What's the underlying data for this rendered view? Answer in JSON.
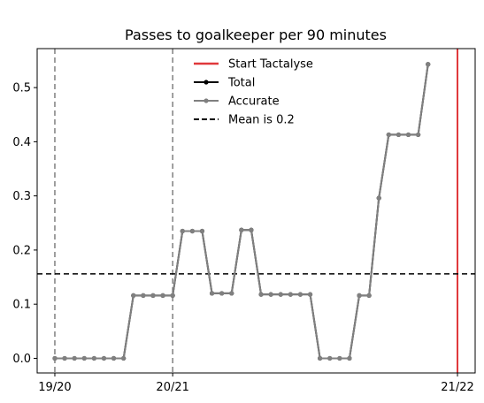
{
  "chart_data": {
    "type": "line",
    "title": "Passes to goalkeeper per 90 minutes",
    "xlabel": "",
    "ylabel": "",
    "x_tick_labels": [
      {
        "x": 0,
        "label": "19/20"
      },
      {
        "x": 12,
        "label": "20/21"
      },
      {
        "x": 41,
        "label": "21/22"
      }
    ],
    "y_ticks": [
      0.0,
      0.1,
      0.2,
      0.3,
      0.4,
      0.5
    ],
    "y_tick_labels": [
      "0.0",
      "0.1",
      "0.2",
      "0.3",
      "0.4",
      "0.5"
    ],
    "xlim": [
      -1.8,
      42.8
    ],
    "ylim": [
      -0.027,
      0.572
    ],
    "grid": false,
    "legend_position": "top-center",
    "series": [
      {
        "name": "Total",
        "color": "#000000",
        "marker": "dot",
        "x": [
          0,
          1,
          2,
          3,
          4,
          5,
          6,
          7,
          8,
          9,
          10,
          11,
          12,
          13,
          14,
          15,
          16,
          17,
          18,
          19,
          20,
          21,
          22,
          23,
          24,
          25,
          26,
          27,
          28,
          29,
          30,
          31,
          32,
          33,
          34,
          35,
          36,
          37,
          38
        ],
        "values": [
          0,
          0,
          0,
          0,
          0,
          0,
          0,
          0,
          0.116,
          0.116,
          0.116,
          0.116,
          0.116,
          0.235,
          0.235,
          0.235,
          0.12,
          0.12,
          0.12,
          0.237,
          0.237,
          0.118,
          0.118,
          0.118,
          0.118,
          0.118,
          0.118,
          0,
          0,
          0,
          0,
          0.116,
          0.116,
          0.296,
          0.413,
          0.413,
          0.413,
          0.413,
          0.543
        ]
      },
      {
        "name": "Accurate",
        "color": "#808080",
        "marker": "dot",
        "x": [
          0,
          1,
          2,
          3,
          4,
          5,
          6,
          7,
          8,
          9,
          10,
          11,
          12,
          13,
          14,
          15,
          16,
          17,
          18,
          19,
          20,
          21,
          22,
          23,
          24,
          25,
          26,
          27,
          28,
          29,
          30,
          31,
          32,
          33,
          34,
          35,
          36,
          37,
          38
        ],
        "values": [
          0,
          0,
          0,
          0,
          0,
          0,
          0,
          0,
          0.116,
          0.116,
          0.116,
          0.116,
          0.116,
          0.235,
          0.235,
          0.235,
          0.12,
          0.12,
          0.12,
          0.237,
          0.237,
          0.118,
          0.118,
          0.118,
          0.118,
          0.118,
          0.118,
          0,
          0,
          0,
          0,
          0.116,
          0.116,
          0.296,
          0.413,
          0.413,
          0.413,
          0.413,
          0.543
        ]
      }
    ],
    "reference_lines": [
      {
        "orientation": "vertical",
        "x": 0,
        "color": "#808080",
        "style": "dashed"
      },
      {
        "orientation": "vertical",
        "x": 12,
        "color": "#808080",
        "style": "dashed"
      },
      {
        "orientation": "vertical",
        "x": 41,
        "color": "#808080",
        "style": "dashed"
      },
      {
        "orientation": "vertical",
        "x": 41,
        "color": "#e0383b",
        "style": "solid",
        "name": "Start Tactalyse"
      },
      {
        "orientation": "horizontal",
        "y": 0.156,
        "color": "#000000",
        "style": "dashed",
        "name": "Mean is 0.2"
      }
    ],
    "legend": [
      {
        "label": "Start Tactalyse",
        "color": "#e0383b",
        "style": "solid"
      },
      {
        "label": "Total",
        "color": "#000000",
        "style": "solid-marker"
      },
      {
        "label": "Accurate",
        "color": "#808080",
        "style": "solid-marker"
      },
      {
        "label": "Mean is 0.2",
        "color": "#000000",
        "style": "dashed"
      }
    ]
  }
}
